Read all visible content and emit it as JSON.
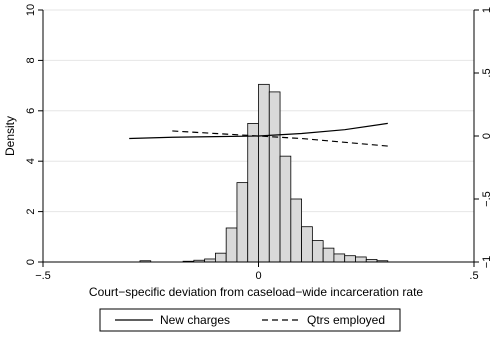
{
  "chart_data": {
    "type": "bar",
    "xlabel": "Court−specific deviation from caseload−wide incarceration rate",
    "ylabel": "Density",
    "xlim": [
      -0.5,
      0.5
    ],
    "ylim": [
      0,
      10
    ],
    "y2lim": [
      -1,
      1
    ],
    "x_ticks": [
      -0.5,
      0,
      0.5
    ],
    "x_tick_labels": [
      "−.5",
      "0",
      ".5"
    ],
    "y_ticks": [
      0,
      2,
      4,
      6,
      8,
      10
    ],
    "y_tick_labels": [
      "0",
      "2",
      "4",
      "6",
      "8",
      "10"
    ],
    "y2_ticks": [
      -1,
      -0.5,
      0,
      0.5,
      1
    ],
    "y2_tick_labels": [
      "−1",
      "−.5",
      "0",
      ".5",
      "1"
    ],
    "grid": true,
    "legend_position": "bottom",
    "histogram": {
      "bin_width": 0.025,
      "bins": [
        {
          "x0": -0.275,
          "density": 0.05
        },
        {
          "x0": -0.175,
          "density": 0.03
        },
        {
          "x0": -0.15,
          "density": 0.07
        },
        {
          "x0": -0.125,
          "density": 0.12
        },
        {
          "x0": -0.1,
          "density": 0.35
        },
        {
          "x0": -0.075,
          "density": 1.35
        },
        {
          "x0": -0.05,
          "density": 3.15
        },
        {
          "x0": -0.025,
          "density": 5.5
        },
        {
          "x0": 0.0,
          "density": 7.05
        },
        {
          "x0": 0.025,
          "density": 6.75
        },
        {
          "x0": 0.05,
          "density": 4.2
        },
        {
          "x0": 0.075,
          "density": 2.5
        },
        {
          "x0": 0.1,
          "density": 1.4
        },
        {
          "x0": 0.125,
          "density": 0.85
        },
        {
          "x0": 0.15,
          "density": 0.55
        },
        {
          "x0": 0.175,
          "density": 0.32
        },
        {
          "x0": 0.2,
          "density": 0.25
        },
        {
          "x0": 0.225,
          "density": 0.2
        },
        {
          "x0": 0.25,
          "density": 0.1
        },
        {
          "x0": 0.275,
          "density": 0.05
        }
      ]
    },
    "series": [
      {
        "name": "New charges",
        "axis": "right",
        "style": "solid",
        "x": [
          -0.3,
          -0.2,
          -0.1,
          0,
          0.1,
          0.2,
          0.3
        ],
        "y": [
          -0.02,
          -0.01,
          -0.005,
          0.0,
          0.02,
          0.05,
          0.1
        ]
      },
      {
        "name": "Qtrs employed",
        "axis": "right",
        "style": "dashed",
        "x": [
          -0.2,
          -0.1,
          0,
          0.1,
          0.2,
          0.3
        ],
        "y": [
          0.04,
          0.02,
          0.0,
          -0.02,
          -0.05,
          -0.08
        ]
      }
    ]
  }
}
